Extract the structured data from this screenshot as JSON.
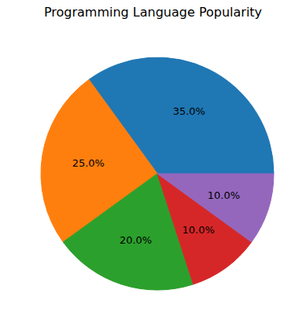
{
  "chart_data": {
    "type": "pie",
    "title": "Programming Language Popularity",
    "values": [
      35,
      25,
      20,
      10,
      10
    ],
    "value_labels": [
      "35.0%",
      "25.0%",
      "20.0%",
      "10.0%",
      "10.0%"
    ],
    "colors": [
      "#1f77b4",
      "#ff7f0e",
      "#2ca02c",
      "#d62728",
      "#9467bd"
    ],
    "data_labels": true
  }
}
